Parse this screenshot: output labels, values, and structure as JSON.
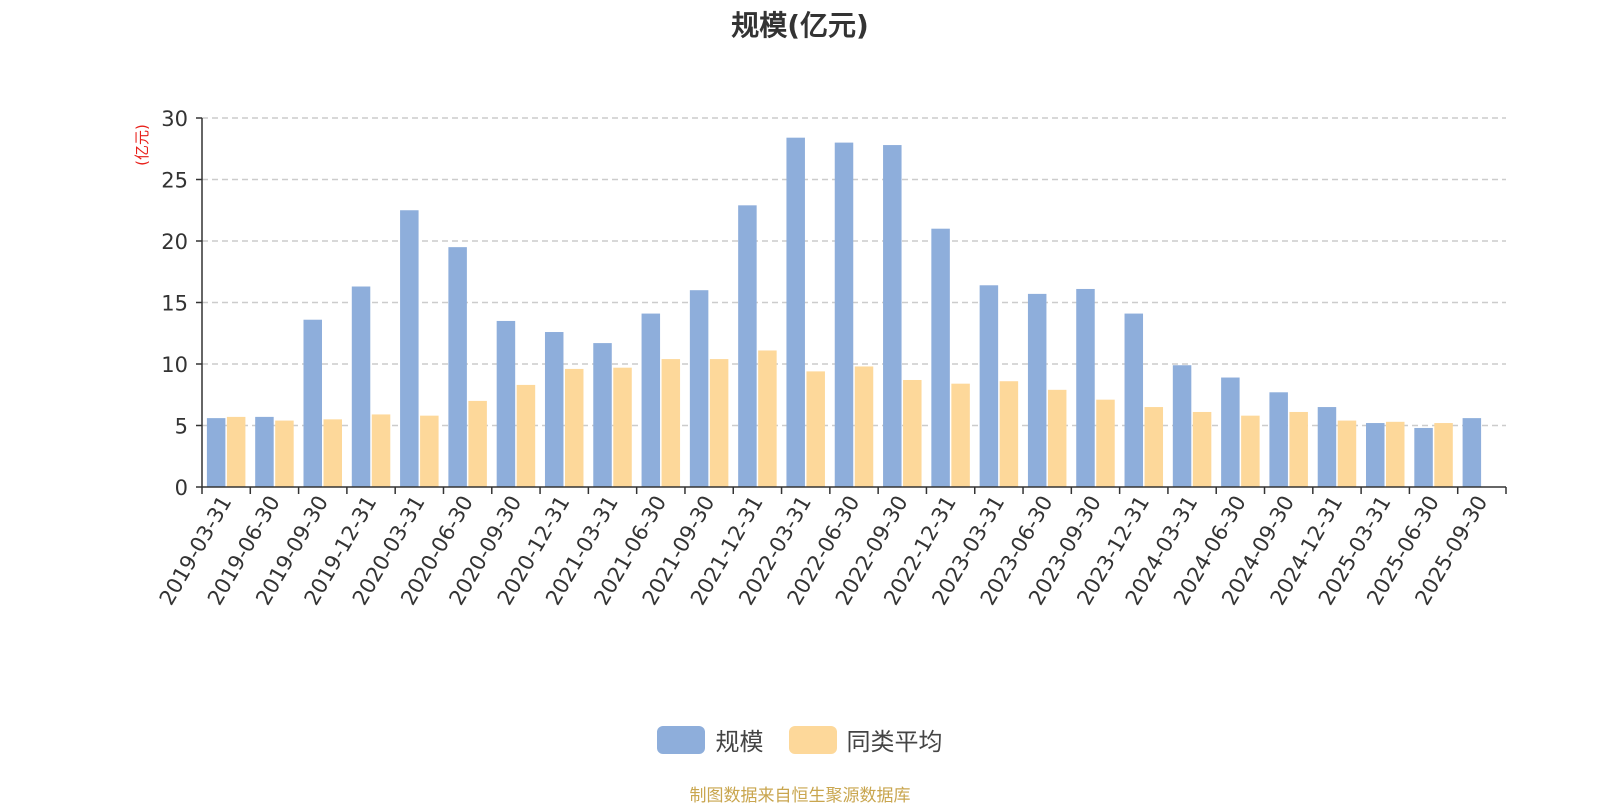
{
  "title": "规模(亿元)",
  "source_note": "制图数据来自恒生聚源数据库",
  "chart_data": {
    "type": "bar",
    "title": "规模(亿元)",
    "ylabel": "(亿元)",
    "ylim": [
      0,
      30
    ],
    "yticks": [
      0,
      5,
      10,
      15,
      20,
      25,
      30
    ],
    "grid": true,
    "legend_position": "bottom",
    "categories": [
      "2019-03-31",
      "2019-06-30",
      "2019-09-30",
      "2019-12-31",
      "2020-03-31",
      "2020-06-30",
      "2020-09-30",
      "2020-12-31",
      "2021-03-31",
      "2021-06-30",
      "2021-09-30",
      "2021-12-31",
      "2022-03-31",
      "2022-06-30",
      "2022-09-30",
      "2022-12-31",
      "2023-03-31",
      "2023-06-30",
      "2023-09-30",
      "2023-12-31",
      "2024-03-31",
      "2024-06-30",
      "2024-09-30",
      "2024-12-31",
      "2025-03-31",
      "2025-06-30",
      "2025-09-30"
    ],
    "series": [
      {
        "name": "规模",
        "color": "#8eaedb",
        "values": [
          5.6,
          5.7,
          13.6,
          16.3,
          22.5,
          19.5,
          13.5,
          12.6,
          11.7,
          14.1,
          16.0,
          22.9,
          28.4,
          28.0,
          27.8,
          21.0,
          16.4,
          15.7,
          16.1,
          14.1,
          9.9,
          8.9,
          7.7,
          6.5,
          5.2,
          4.8,
          5.6
        ]
      },
      {
        "name": "同类平均",
        "color": "#fdd89a",
        "values": [
          5.7,
          5.4,
          5.5,
          5.9,
          5.8,
          7.0,
          8.3,
          9.6,
          9.7,
          10.4,
          10.4,
          11.1,
          9.4,
          9.8,
          8.7,
          8.4,
          8.6,
          7.9,
          7.1,
          6.5,
          6.1,
          5.8,
          6.1,
          5.4,
          5.3,
          5.2,
          null
        ]
      }
    ]
  }
}
